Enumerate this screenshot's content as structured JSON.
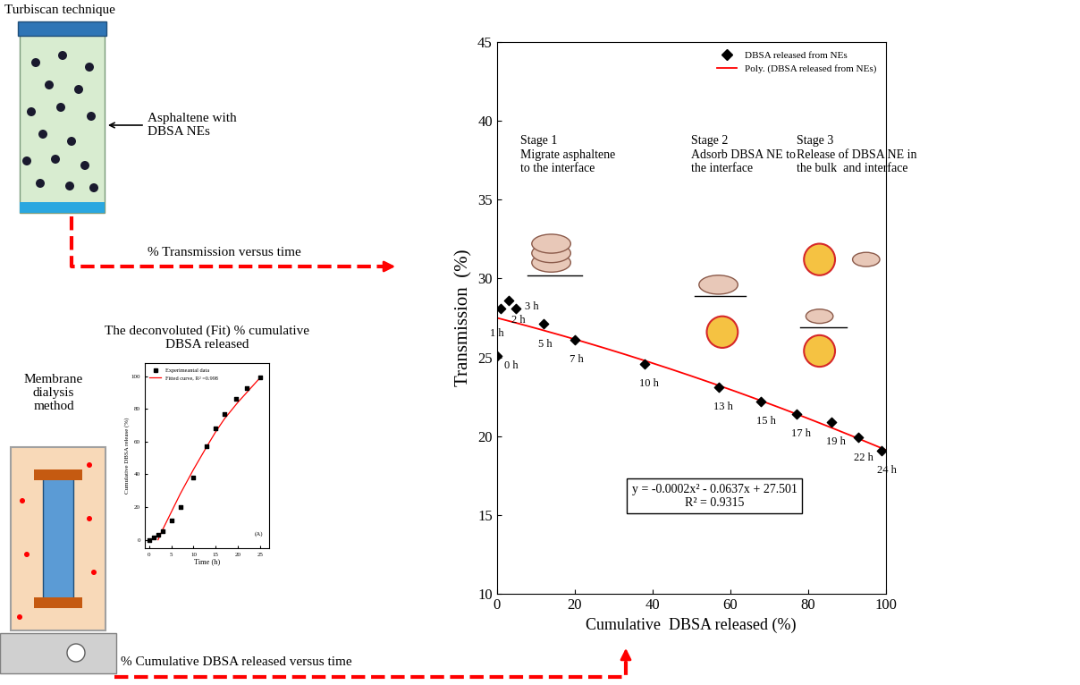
{
  "chart_data": [
    {
      "type": "scatter",
      "xlabel": "Cumulative  DBSA released (%)",
      "ylabel": "Transmission  (%)",
      "xlim": [
        0,
        100
      ],
      "xticks": [
        0,
        20,
        40,
        60,
        80,
        100
      ],
      "ylim": [
        10,
        45
      ],
      "yticks": [
        10,
        15,
        20,
        25,
        30,
        35,
        40,
        45
      ],
      "legend": "upper right",
      "series": [
        {
          "name": "DBSA released from NEs",
          "type": "scatter",
          "color": "#000000",
          "marker": "diamond",
          "x": [
            0,
            1,
            3,
            5,
            12,
            20,
            38,
            57,
            68,
            77,
            86,
            93,
            99
          ],
          "values": [
            25.1,
            28.1,
            28.6,
            28.1,
            27.1,
            26.1,
            24.6,
            23.1,
            22.2,
            21.4,
            20.9,
            19.9,
            19.1
          ],
          "point_labels": [
            "0 h",
            "1 h",
            "2 h",
            "3 h",
            "5 h",
            "7 h",
            "10 h",
            "13 h",
            "15 h",
            "17 h",
            "19 h",
            "22 h",
            "24 h"
          ]
        },
        {
          "name": "Poly. (DBSA released from NEs)",
          "type": "line",
          "color": "#ff0000",
          "line_style": "solid",
          "coefficients": [
            -0.0002,
            -0.0637,
            27.501
          ]
        }
      ],
      "annotations": [
        {
          "title": "Stage 1",
          "text": "Migrate asphaltene\nto the interface"
        },
        {
          "title": "Stage 2",
          "text": "Adsorb DBSA NE to\nthe interface"
        },
        {
          "title": "Stage 3",
          "text": "Release of DBSA NE in\nthe bulk  and interface"
        }
      ],
      "equation": "y = -0.0002x² - 0.0637x + 27.501",
      "r_squared": "R² = 0.9315"
    },
    {
      "type": "scatter",
      "title": "The deconvoluted (Fit) % cumulative\nDBSA released",
      "xlabel": "Time (h)",
      "ylabel": "Cumulative DBSA release (%)",
      "xlim": [
        -1,
        27
      ],
      "xticks": [
        0,
        5,
        10,
        15,
        20,
        25
      ],
      "ylim": [
        -5,
        108
      ],
      "yticks": [
        0,
        20,
        40,
        60,
        80,
        100
      ],
      "legend": "upper left",
      "panel_label": "(A)",
      "series": [
        {
          "name": "Experimeantal data",
          "type": "scatter",
          "color": "#000000",
          "marker": "square",
          "x": [
            0,
            1,
            2,
            3,
            5,
            7,
            10,
            13,
            15,
            17,
            19.5,
            22,
            25
          ],
          "values": [
            0,
            1.5,
            3,
            5,
            12,
            20,
            38,
            57,
            68,
            77,
            86,
            92.5,
            99
          ]
        },
        {
          "name": "Fitted curve, R² =0.998",
          "type": "line",
          "color": "#ff0000",
          "line_style": "solid",
          "x": [
            2,
            3,
            5,
            7,
            10,
            13,
            15,
            17,
            20,
            22,
            25
          ],
          "values": [
            0,
            6,
            17,
            28,
            43,
            57,
            66,
            74,
            84,
            90,
            99
          ]
        }
      ]
    }
  ],
  "diagram": {
    "turbiscan_title": "Turbiscan technique",
    "vial_label": "Asphaltene with\nDBSA NEs",
    "arrow_1": "% Transmission versus time",
    "membrane_label": "Membrane\ndialysis\nmethod",
    "arrow_2": "% Cumulative DBSA released versus time"
  }
}
